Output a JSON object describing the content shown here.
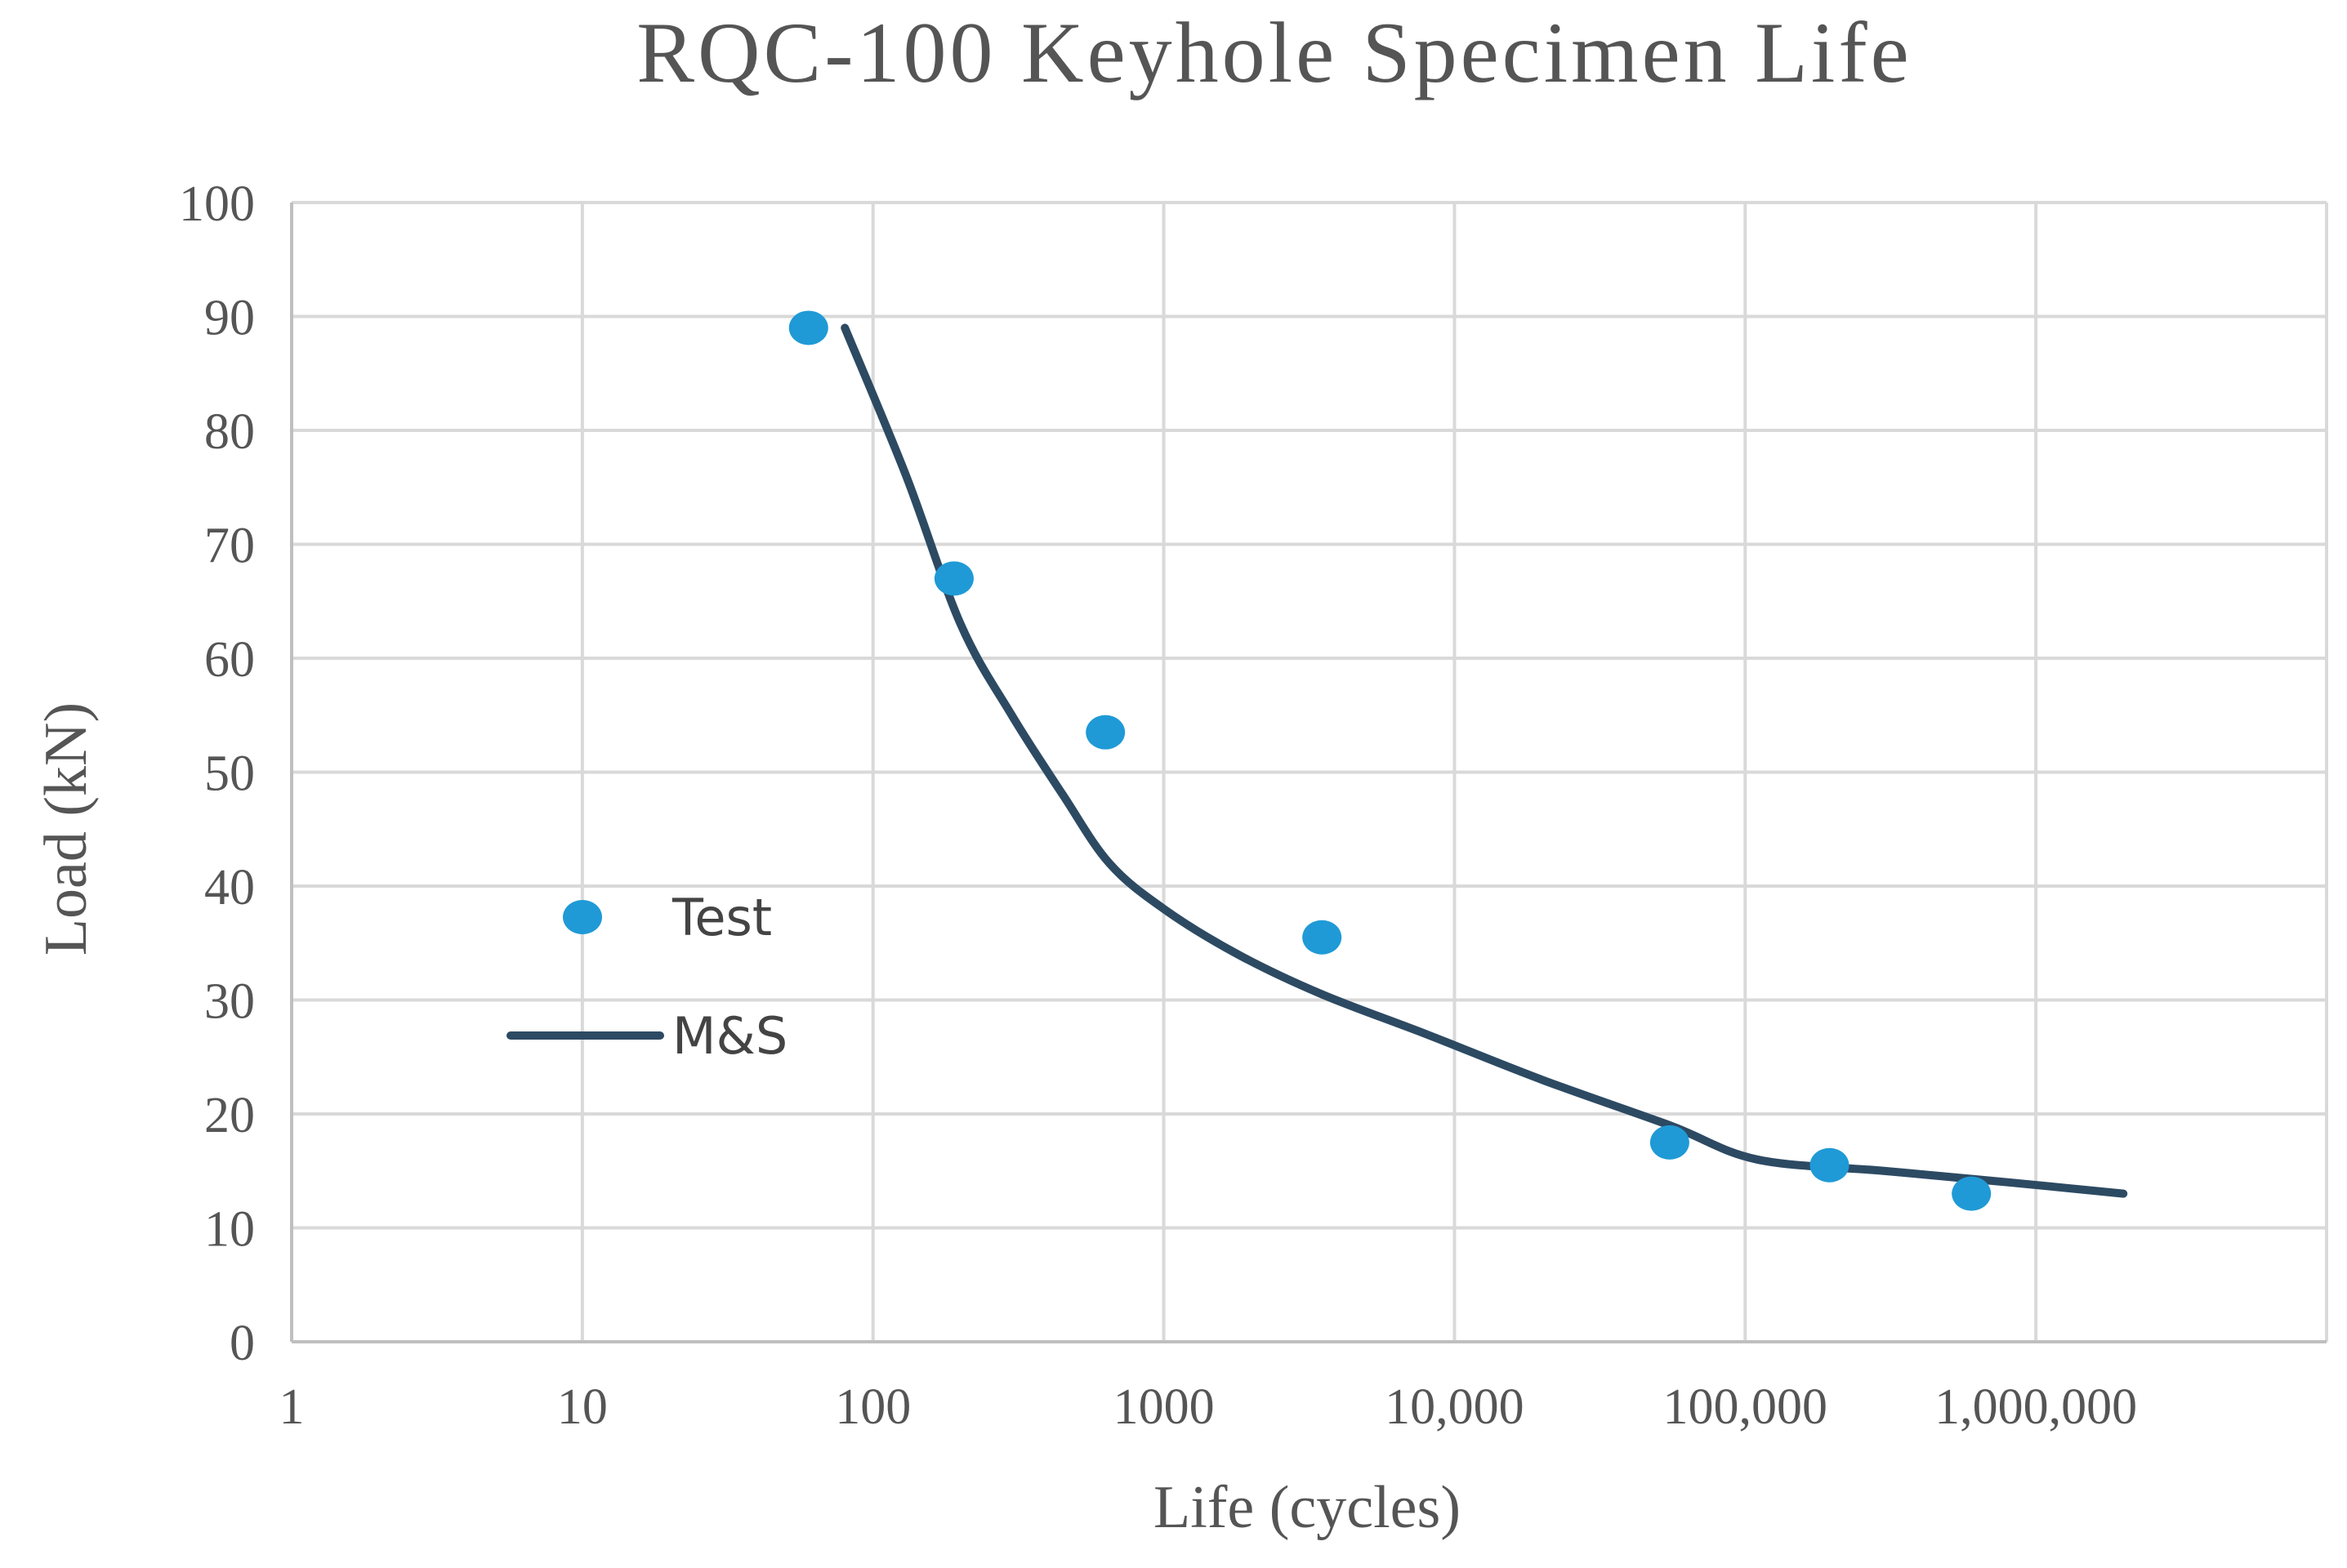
{
  "chart_data": {
    "type": "scatter",
    "title": "RQC-100 Keyhole Specimen Life",
    "xlabel": "Life (cycles)",
    "ylabel": "Load (kN)",
    "xscale": "log",
    "xlim": [
      1,
      10000000
    ],
    "ylim": [
      0,
      100
    ],
    "grid": true,
    "legend_position": "center-left",
    "x_tick_labels": [
      "1",
      "10",
      "100",
      "1000",
      "10,000",
      "100,000",
      "1,000,000"
    ],
    "y_tick_labels": [
      "0",
      "10",
      "20",
      "30",
      "40",
      "50",
      "60",
      "70",
      "80",
      "90",
      "100"
    ],
    "series": [
      {
        "name": "Test",
        "kind": "scatter",
        "color": "#1f9ad6",
        "x": [
          60,
          190,
          630,
          3500,
          55000,
          195000,
          600000
        ],
        "y": [
          89,
          67,
          53.5,
          35.5,
          17.5,
          15.5,
          13
        ]
      },
      {
        "name": "M&S",
        "kind": "line",
        "color": "#2d4a63",
        "x": [
          80,
          130,
          200,
          300,
          450,
          650,
          1000,
          1800,
          3500,
          8000,
          20000,
          55000,
          110000,
          300000,
          800000,
          2000000
        ],
        "y": [
          89,
          76,
          63,
          55,
          48,
          42,
          38,
          34,
          30.5,
          27,
          23,
          19,
          16,
          15,
          14,
          13
        ]
      }
    ]
  }
}
